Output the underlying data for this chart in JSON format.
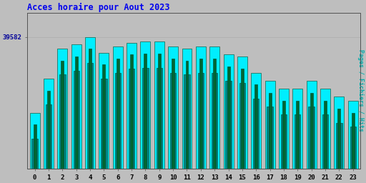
{
  "title": "Acces horaire pour Aout 2023",
  "title_color": "#0000ee",
  "ylabel_right": "Pages / Fichiers / Hits",
  "ylabel_right_color": "#00aaaa",
  "xlabel_ticks": [
    0,
    1,
    2,
    3,
    4,
    5,
    6,
    7,
    8,
    9,
    10,
    11,
    12,
    13,
    14,
    15,
    16,
    17,
    18,
    19,
    20,
    21,
    22,
    23
  ],
  "ytick_label": "39582",
  "ytick_color": "#000099",
  "background_color": "#bebebe",
  "plot_bg_color": "#bebebe",
  "bar_color_cyan": "#00eeff",
  "bar_color_teal": "#008888",
  "bar_color_darkgreen": "#006633",
  "bar_edge_color": "#004422",
  "hits": [
    35800,
    37500,
    39000,
    39200,
    39582,
    38800,
    39100,
    39300,
    39350,
    39350,
    39100,
    39000,
    39100,
    39100,
    38700,
    38600,
    37800,
    37400,
    37000,
    37000,
    37400,
    37000,
    36600,
    36400
  ],
  "pages": [
    35200,
    36900,
    38400,
    38600,
    39000,
    38200,
    38500,
    38700,
    38750,
    38750,
    38500,
    38400,
    38500,
    38500,
    38100,
    38000,
    37200,
    36800,
    36400,
    36400,
    36800,
    36400,
    36000,
    35800
  ],
  "files": [
    34500,
    36200,
    37700,
    37900,
    38300,
    37500,
    37800,
    38000,
    38050,
    38050,
    37800,
    37700,
    37800,
    37800,
    37400,
    37300,
    36500,
    36100,
    35700,
    35700,
    36100,
    35700,
    35300,
    35100
  ],
  "ymin": 33000,
  "ymax": 40800,
  "bar_width": 0.72
}
